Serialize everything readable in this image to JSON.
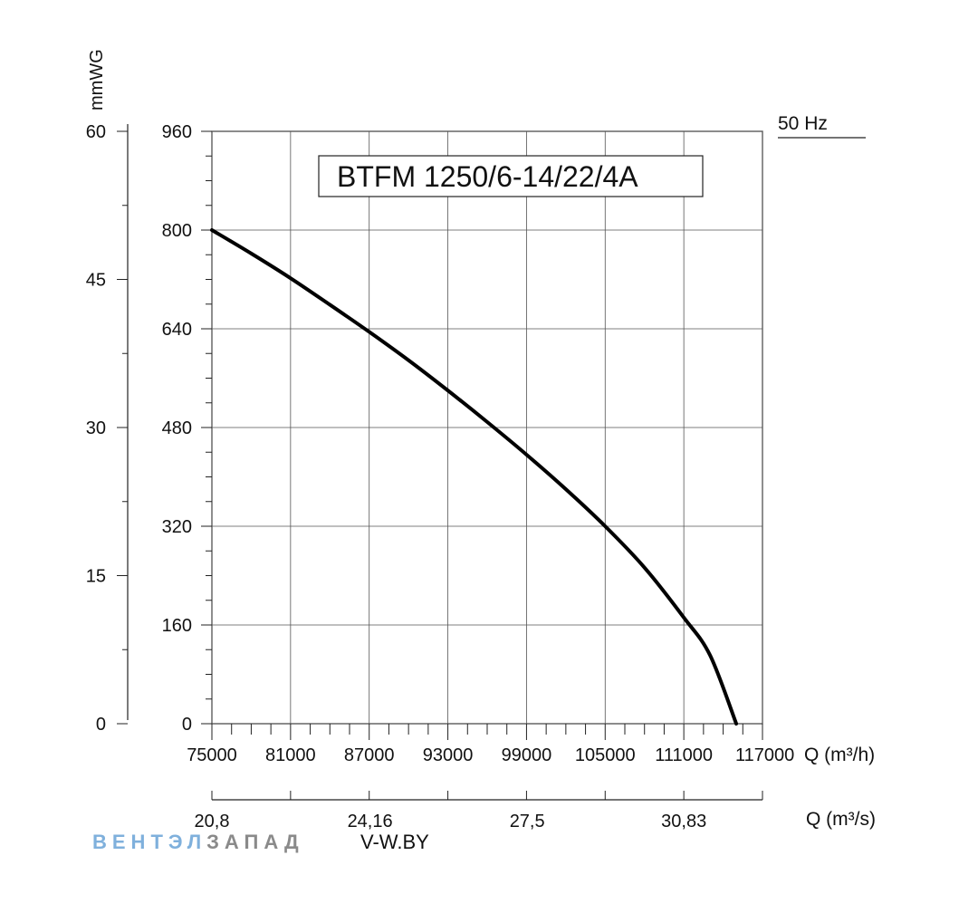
{
  "chart_data": {
    "type": "line",
    "title": "BTFM 1250/6-14/22/4A",
    "frequency_label": "50 Hz",
    "x": {
      "label": "Q (m³/h)",
      "range": [
        75000,
        117000
      ],
      "ticks": [
        "75000",
        "81000",
        "87000",
        "93000",
        "99000",
        "105000",
        "111000",
        "117000"
      ],
      "tick_values": [
        75000,
        81000,
        87000,
        93000,
        99000,
        105000,
        111000,
        117000
      ]
    },
    "x2": {
      "label": "Q (m³/s)",
      "range": [
        20.8,
        32.5
      ],
      "ticks": [
        "20,8",
        "24,16",
        "27,5",
        "30,83"
      ],
      "tick_values": [
        20.8,
        24.16,
        27.5,
        30.83
      ]
    },
    "y": {
      "range": [
        0,
        960
      ],
      "ticks": [
        "0",
        "160",
        "320",
        "480",
        "640",
        "800",
        "960"
      ],
      "tick_values": [
        0,
        160,
        320,
        480,
        640,
        800,
        960
      ]
    },
    "y2": {
      "label": "mmWG",
      "range": [
        0,
        60
      ],
      "ticks": [
        "0",
        "15",
        "30",
        "45",
        "60"
      ],
      "tick_values": [
        0,
        15,
        30,
        45,
        60
      ]
    },
    "grid": true,
    "series": [
      {
        "color": "#000000",
        "x": [
          75000,
          78000,
          81000,
          84000,
          87000,
          90000,
          93000,
          96000,
          99000,
          102000,
          105000,
          108000,
          111000,
          113000,
          115000
        ],
        "y": [
          800,
          762,
          722,
          679,
          635,
          589,
          540,
          489,
          436,
          380,
          320,
          253,
          172,
          111,
          0
        ]
      }
    ]
  },
  "watermark": {
    "part1": "ВЕНТЭЛ",
    "part2": "ЗАПАД",
    "part3": "V-W.BY",
    "color1": "#7fb0dc",
    "color2": "#8a8a8a",
    "color3": "#bfbfbf"
  }
}
